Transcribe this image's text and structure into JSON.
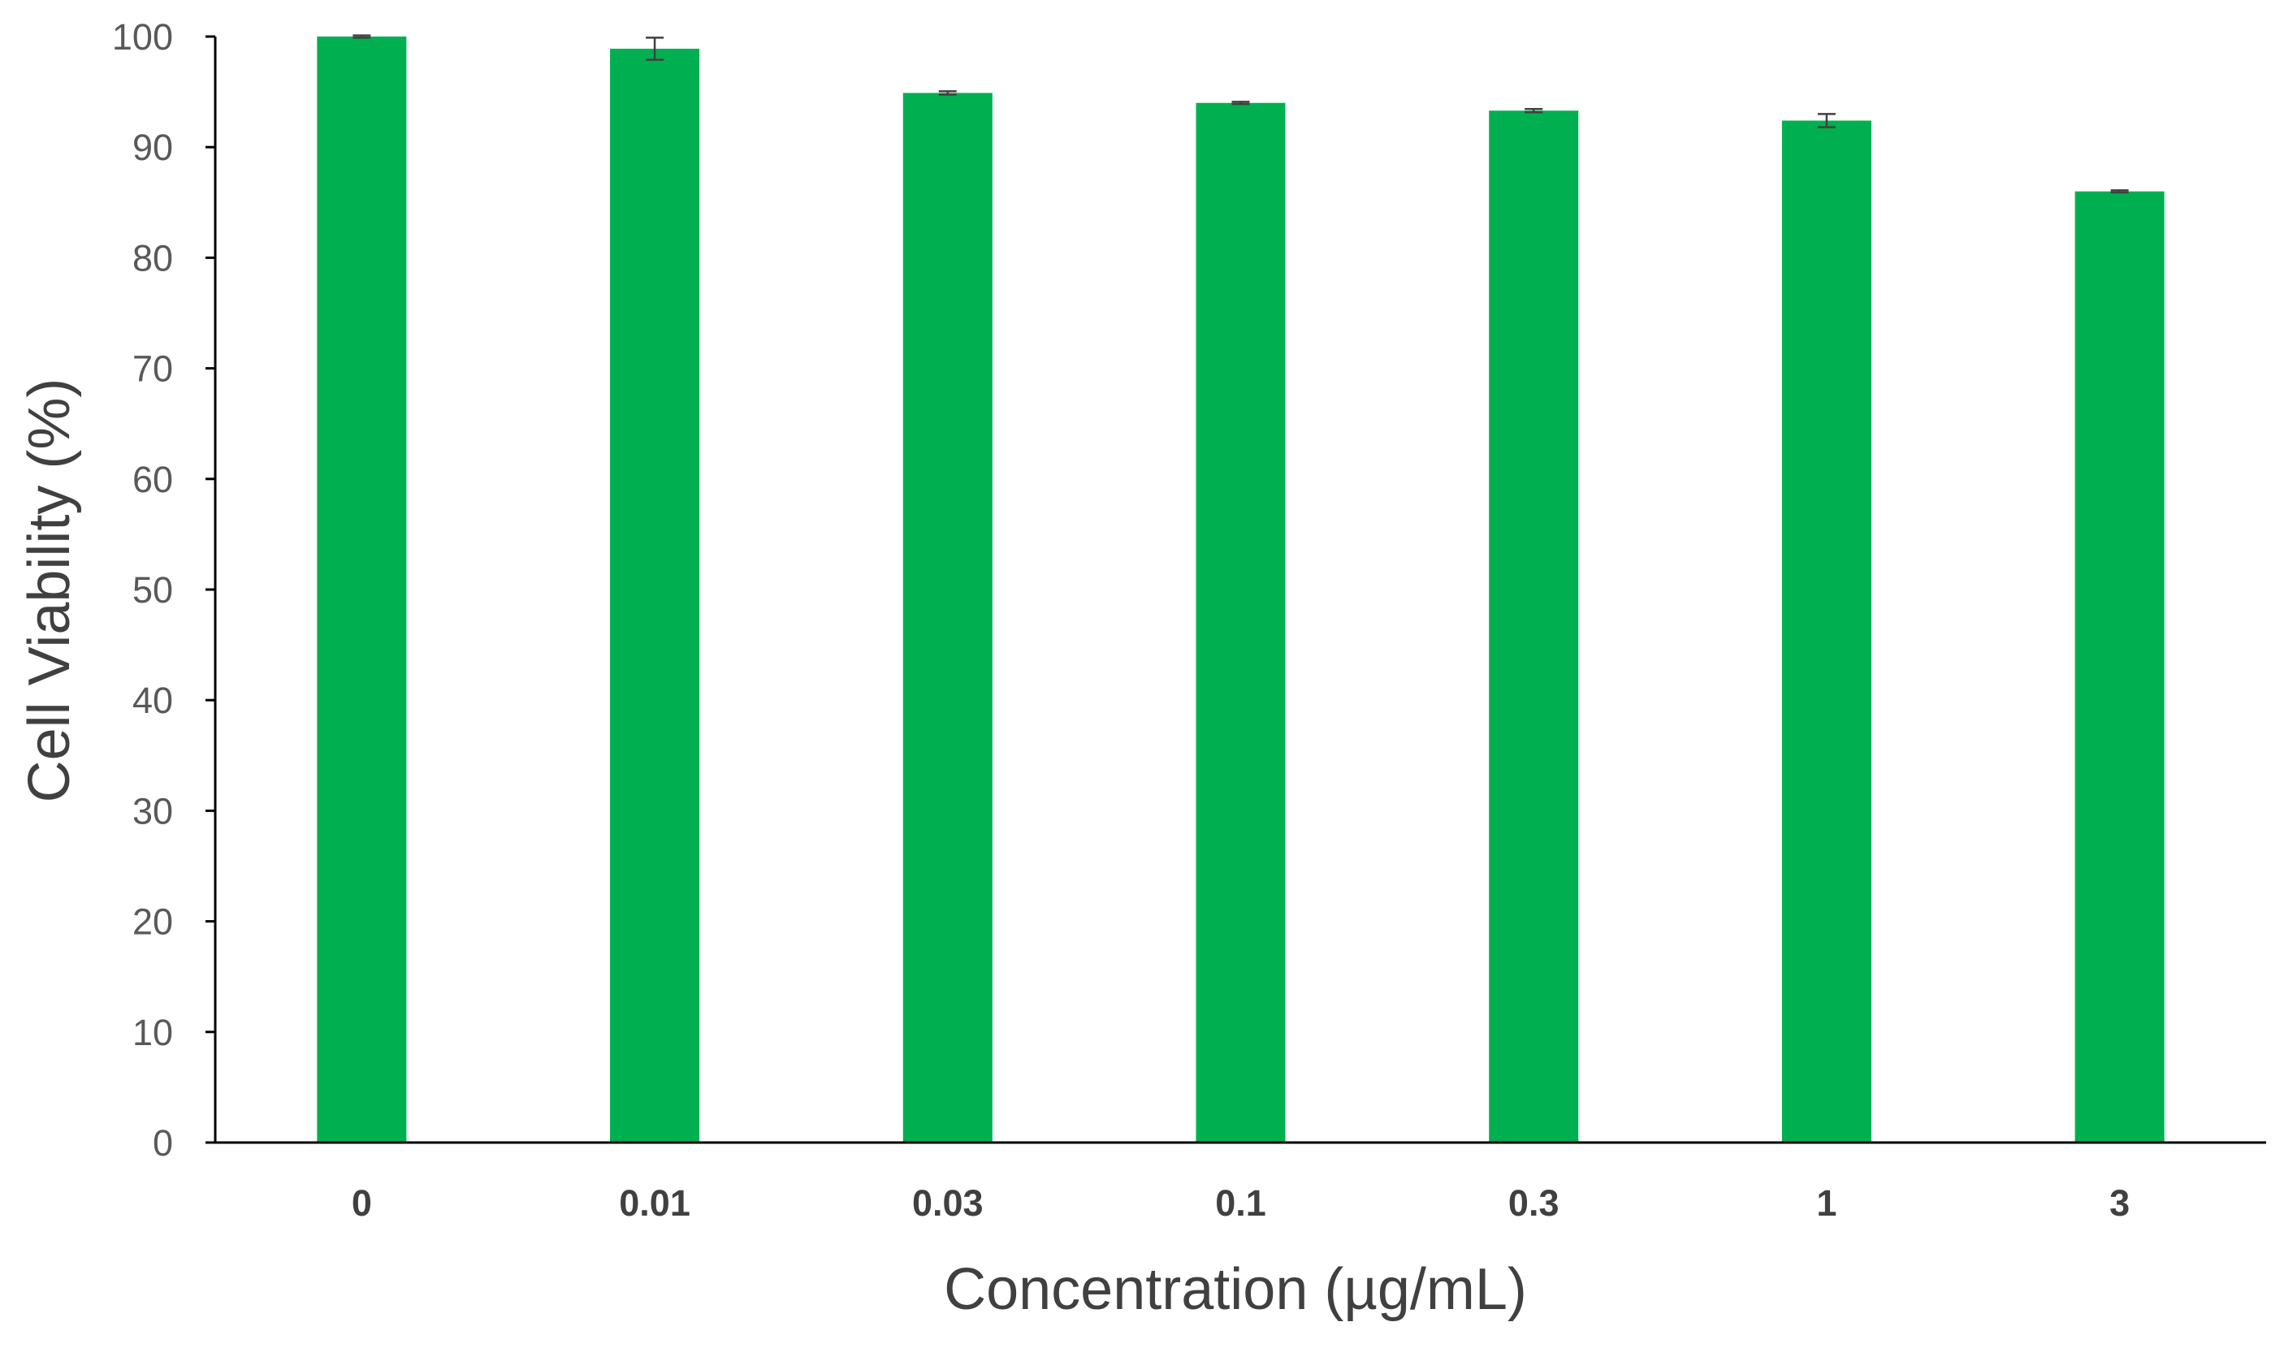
{
  "chart_data": {
    "type": "bar",
    "title": "",
    "xlabel": "Concentration (µg/mL)",
    "ylabel": "Cell Viability (%)",
    "categories": [
      "0",
      "0.01",
      "0.03",
      "0.1",
      "0.3",
      "1",
      "3"
    ],
    "series": [
      {
        "values": [
          100,
          98.9,
          94.9,
          94.0,
          93.3,
          92.4,
          86.0
        ],
        "errors": [
          0.1,
          1.0,
          0.15,
          0.1,
          0.15,
          0.6,
          0.1
        ]
      }
    ],
    "ylim": [
      0,
      100
    ],
    "yticks": [
      0,
      10,
      20,
      30,
      40,
      50,
      60,
      70,
      80,
      90,
      100
    ],
    "grid": false,
    "legend": "none",
    "colors": {
      "bar": "#00B050",
      "axis": "#000000",
      "error_bar": "#404040"
    }
  }
}
